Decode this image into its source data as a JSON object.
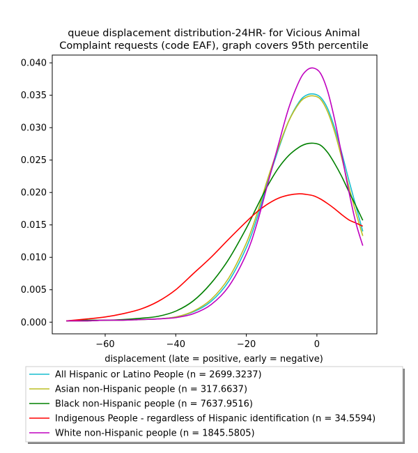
{
  "chart_data": {
    "type": "line",
    "title_lines": [
      "queue displacement distribution-24HR-  for Vicious Animal",
      "Complaint  requests (code EAF), graph covers 95th percentile"
    ],
    "xlabel": "displacement (late = positive, early = negative)",
    "ylabel": "",
    "xlim": [
      -75,
      17
    ],
    "ylim": [
      -0.0018,
      0.0412
    ],
    "xticks": [
      -60,
      -40,
      -20,
      0
    ],
    "xtick_labels": [
      "−60",
      "−40",
      "−20",
      "0"
    ],
    "yticks": [
      0.0,
      0.005,
      0.01,
      0.015,
      0.02,
      0.025,
      0.03,
      0.035,
      0.04
    ],
    "ytick_labels": [
      "0.000",
      "0.005",
      "0.010",
      "0.015",
      "0.020",
      "0.025",
      "0.030",
      "0.035",
      "0.040"
    ],
    "grid": false,
    "legend_position": "below plot",
    "x": [
      -71,
      -65,
      -60,
      -55,
      -50,
      -45,
      -40,
      -35,
      -30,
      -25,
      -20,
      -17,
      -14,
      -11,
      -8,
      -5,
      -3,
      -1,
      1,
      3,
      5,
      7,
      9,
      11,
      13
    ],
    "series": [
      {
        "name": "All Hispanic or Latino People (n = 2699.3237)",
        "color": "#17becf",
        "values": [
          0.0002,
          0.0002,
          0.0003,
          0.0003,
          0.0004,
          0.0005,
          0.0008,
          0.0016,
          0.0032,
          0.0063,
          0.0115,
          0.016,
          0.0215,
          0.0265,
          0.031,
          0.034,
          0.035,
          0.0352,
          0.0347,
          0.033,
          0.03,
          0.0262,
          0.022,
          0.018,
          0.014
        ]
      },
      {
        "name": "Asian non-Hispanic people (n = 317.6637)",
        "color": "#bcbd22",
        "values": [
          0.0002,
          0.0002,
          0.0003,
          0.0003,
          0.0004,
          0.0005,
          0.0008,
          0.0017,
          0.0035,
          0.0068,
          0.0122,
          0.0167,
          0.022,
          0.0268,
          0.031,
          0.0338,
          0.0347,
          0.0349,
          0.0344,
          0.0325,
          0.0294,
          0.0254,
          0.021,
          0.017,
          0.0133
        ]
      },
      {
        "name": "Black non-Hispanic people (n = 7637.9516)",
        "color": "#008000",
        "values": [
          0.0002,
          0.0003,
          0.0003,
          0.0004,
          0.0006,
          0.0009,
          0.0017,
          0.0033,
          0.006,
          0.0097,
          0.0145,
          0.0178,
          0.021,
          0.0237,
          0.0257,
          0.027,
          0.0275,
          0.0276,
          0.0273,
          0.0262,
          0.0245,
          0.0225,
          0.0202,
          0.018,
          0.0157
        ]
      },
      {
        "name": "Indigenous People - regardless of Hispanic identification (n = 34.5594)",
        "color": "#ff0000",
        "values": [
          0.0002,
          0.0005,
          0.0008,
          0.0013,
          0.002,
          0.0032,
          0.005,
          0.0075,
          0.01,
          0.0128,
          0.0155,
          0.017,
          0.0182,
          0.0191,
          0.0196,
          0.0198,
          0.0197,
          0.0195,
          0.019,
          0.0183,
          0.0175,
          0.0166,
          0.0158,
          0.0153,
          0.0148
        ]
      },
      {
        "name": "White non-Hispanic people (n = 1845.5805)",
        "color": "#bf00bf",
        "values": [
          0.0002,
          0.0002,
          0.0003,
          0.0003,
          0.0004,
          0.0005,
          0.0007,
          0.0013,
          0.0027,
          0.0055,
          0.0105,
          0.0152,
          0.0212,
          0.0272,
          0.033,
          0.0372,
          0.0388,
          0.0392,
          0.0384,
          0.0357,
          0.0313,
          0.0259,
          0.0203,
          0.0154,
          0.0118
        ]
      }
    ]
  }
}
